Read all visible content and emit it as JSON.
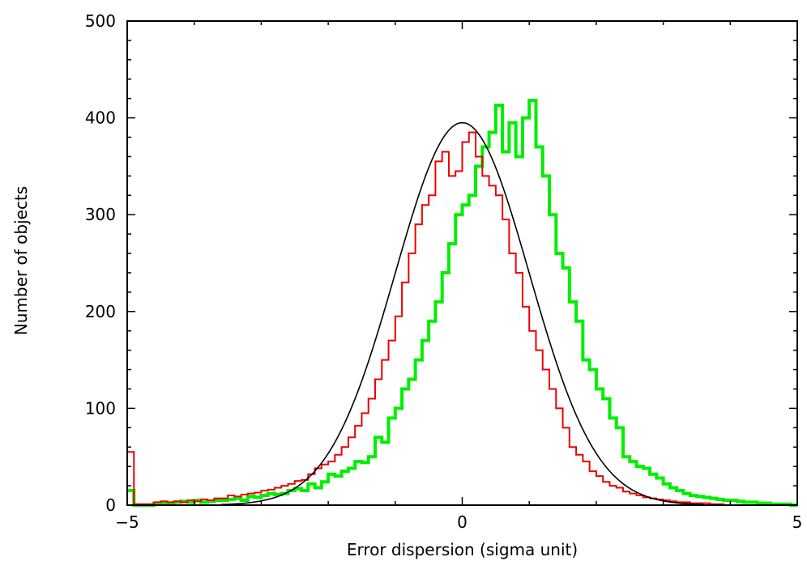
{
  "chart_data": {
    "type": "histogram",
    "title": "",
    "xlabel": "Error dispersion (sigma unit)",
    "ylabel": "Number of objects",
    "xlim": [
      -5,
      5
    ],
    "ylim": [
      0,
      500
    ],
    "xticks": [
      -5,
      0,
      5
    ],
    "yticks": [
      0,
      100,
      200,
      300,
      400,
      500
    ],
    "xtick_labels": [
      "−5",
      "0",
      "5"
    ],
    "ytick_labels": [
      "0",
      "100",
      "200",
      "300",
      "400",
      "500"
    ],
    "grid": false,
    "legend": "none",
    "bin_start": -5,
    "bin_width": 0.1,
    "series": [
      {
        "color": "#00ee00",
        "values": [
          15,
          0,
          0,
          0,
          2,
          2,
          2,
          3,
          4,
          3,
          5,
          3,
          4,
          5,
          5,
          6,
          7,
          5,
          9,
          8,
          10,
          12,
          11,
          12,
          15,
          17,
          15,
          22,
          18,
          24,
          32,
          30,
          35,
          38,
          45,
          44,
          50,
          70,
          65,
          90,
          100,
          120,
          130,
          150,
          170,
          190,
          210,
          240,
          270,
          300,
          310,
          320,
          350,
          370,
          385,
          413,
          365,
          395,
          360,
          400,
          418,
          370,
          340,
          300,
          260,
          245,
          210,
          190,
          150,
          140,
          120,
          110,
          90,
          80,
          50,
          45,
          40,
          38,
          32,
          28,
          22,
          18,
          15,
          12,
          10,
          9,
          8,
          7,
          6,
          5,
          5,
          4,
          3,
          3,
          2,
          2,
          1,
          1,
          1,
          0
        ]
      },
      {
        "color": "#ee0000",
        "values": [
          55,
          1,
          1,
          1,
          3,
          4,
          3,
          4,
          3,
          5,
          4,
          6,
          5,
          7,
          7,
          10,
          9,
          11,
          12,
          13,
          15,
          16,
          18,
          20,
          22,
          25,
          26,
          32,
          38,
          42,
          45,
          52,
          60,
          70,
          82,
          95,
          110,
          130,
          150,
          170,
          195,
          230,
          260,
          290,
          310,
          320,
          355,
          365,
          340,
          345,
          375,
          385,
          360,
          340,
          330,
          320,
          295,
          260,
          240,
          205,
          180,
          160,
          140,
          120,
          100,
          80,
          60,
          52,
          45,
          35,
          30,
          24,
          20,
          18,
          14,
          12,
          10,
          8,
          7,
          6,
          5,
          4,
          3,
          3,
          2,
          2,
          2,
          1,
          1,
          0,
          0,
          0,
          0,
          0,
          0,
          0,
          0,
          0,
          0,
          0
        ]
      }
    ],
    "curve": {
      "type": "gaussian",
      "color": "#000000",
      "amplitude": 395,
      "mean": 0,
      "sigma": 1
    }
  }
}
